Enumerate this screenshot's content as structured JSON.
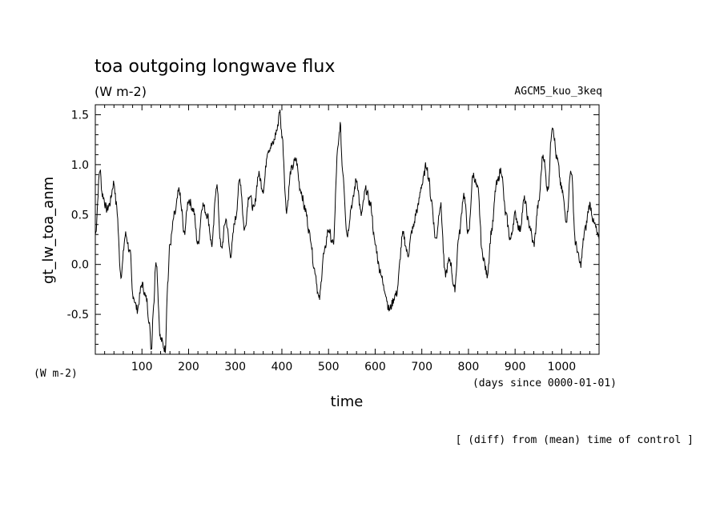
{
  "chart_data": {
    "type": "line",
    "title": "toa outgoing longwave flux",
    "units": "(W m-2)",
    "experiment": "AGCM5_kuo_3keq",
    "ylabel": "gt_lw_toa_anm",
    "xlabel": "time",
    "x_units": "(days since 0000-01-01)",
    "y_units": "(W m-2)",
    "note": "[ (diff) from (mean) time of control ]",
    "xlim": [
      0,
      1080
    ],
    "ylim": [
      -0.9,
      1.6
    ],
    "x_ticks": [
      100,
      200,
      300,
      400,
      500,
      600,
      700,
      800,
      900,
      1000
    ],
    "y_ticks": [
      -0.5,
      0.0,
      0.5,
      1.0,
      1.5
    ],
    "y_tick_labels": [
      "-0.5",
      "0.0",
      "0.5",
      "1.0",
      "1.5"
    ],
    "series": [
      {
        "x": [
          0,
          10,
          15,
          25,
          30,
          40,
          45,
          55,
          65,
          75,
          80,
          90,
          100,
          110,
          115,
          120,
          125,
          130,
          140,
          150,
          155,
          160,
          170,
          180,
          185,
          190,
          200,
          210,
          220,
          230,
          240,
          250,
          260,
          270,
          280,
          290,
          300,
          310,
          320,
          330,
          340,
          350,
          360,
          370,
          380,
          390,
          395,
          400,
          410,
          420,
          430,
          440,
          450,
          460,
          470,
          480,
          490,
          500,
          510,
          520,
          525,
          530,
          540,
          550,
          560,
          570,
          580,
          590,
          600,
          610,
          620,
          630,
          645,
          660,
          670,
          680,
          690,
          700,
          710,
          715,
          720,
          730,
          740,
          750,
          760,
          770,
          780,
          790,
          800,
          810,
          820,
          830,
          840,
          850,
          860,
          870,
          880,
          890,
          900,
          910,
          920,
          930,
          940,
          950,
          960,
          970,
          980,
          990,
          1000,
          1010,
          1020,
          1030,
          1040,
          1050,
          1060,
          1070,
          1080
        ],
        "y": [
          0.3,
          0.95,
          0.7,
          0.55,
          0.6,
          0.82,
          0.6,
          -0.1,
          0.3,
          0.1,
          -0.3,
          -0.45,
          -0.2,
          -0.35,
          -0.55,
          -0.85,
          -0.4,
          0.05,
          -0.75,
          -0.85,
          -0.2,
          0.2,
          0.5,
          0.75,
          0.55,
          0.3,
          0.65,
          0.55,
          0.2,
          0.6,
          0.5,
          0.2,
          0.8,
          0.15,
          0.45,
          0.1,
          0.45,
          0.85,
          0.35,
          0.7,
          0.55,
          0.9,
          0.75,
          1.15,
          1.2,
          1.35,
          1.55,
          1.3,
          0.55,
          0.95,
          1.05,
          0.75,
          0.55,
          0.3,
          -0.05,
          -0.35,
          0.1,
          0.35,
          0.2,
          1.15,
          1.4,
          0.95,
          0.3,
          0.6,
          0.85,
          0.5,
          0.75,
          0.6,
          0.2,
          -0.05,
          -0.25,
          -0.45,
          -0.3,
          0.3,
          0.1,
          0.35,
          0.55,
          0.8,
          1.0,
          0.85,
          0.65,
          0.25,
          0.6,
          -0.1,
          0.05,
          -0.25,
          0.3,
          0.7,
          0.3,
          0.9,
          0.75,
          0.1,
          -0.1,
          0.35,
          0.8,
          0.95,
          0.5,
          0.25,
          0.5,
          0.35,
          0.65,
          0.4,
          0.2,
          0.6,
          1.1,
          0.75,
          1.4,
          1.05,
          0.75,
          0.45,
          0.95,
          0.2,
          0.0,
          0.35,
          0.6,
          0.4,
          0.25
        ]
      }
    ]
  }
}
